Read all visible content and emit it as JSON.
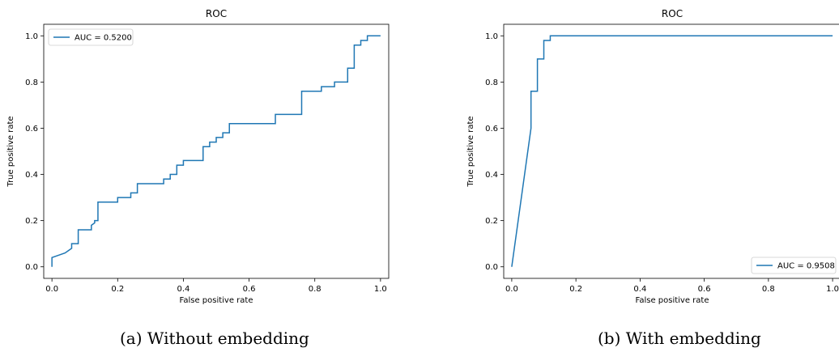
{
  "chart_data": [
    {
      "type": "line",
      "title": "ROC",
      "xlabel": "False positive rate",
      "ylabel": "True positive rate",
      "xlim": [
        -0.025,
        1.025
      ],
      "ylim": [
        -0.05,
        1.05
      ],
      "xticks": [
        0.0,
        0.2,
        0.4,
        0.6,
        0.8,
        1.0
      ],
      "yticks": [
        0.0,
        0.2,
        0.4,
        0.6,
        0.8,
        1.0
      ],
      "tick_labels": [
        "0.0",
        "0.2",
        "0.4",
        "0.6",
        "0.8",
        "1.0"
      ],
      "grid": false,
      "legend_position": "upper-left",
      "series": [
        {
          "name": "AUC = 0.5200",
          "color": "#1f77b4",
          "x": [
            0.0,
            0.0,
            0.02,
            0.04,
            0.05,
            0.06,
            0.06,
            0.08,
            0.08,
            0.12,
            0.12,
            0.13,
            0.13,
            0.14,
            0.14,
            0.2,
            0.2,
            0.24,
            0.24,
            0.26,
            0.26,
            0.34,
            0.34,
            0.36,
            0.36,
            0.38,
            0.38,
            0.4,
            0.4,
            0.46,
            0.46,
            0.48,
            0.48,
            0.5,
            0.5,
            0.52,
            0.52,
            0.54,
            0.54,
            0.68,
            0.68,
            0.76,
            0.76,
            0.82,
            0.82,
            0.86,
            0.86,
            0.9,
            0.9,
            0.92,
            0.92,
            0.94,
            0.94,
            0.96,
            0.96,
            1.0
          ],
          "y": [
            0.0,
            0.04,
            0.05,
            0.06,
            0.07,
            0.08,
            0.1,
            0.1,
            0.16,
            0.16,
            0.18,
            0.19,
            0.2,
            0.2,
            0.28,
            0.28,
            0.3,
            0.3,
            0.32,
            0.32,
            0.36,
            0.36,
            0.38,
            0.38,
            0.4,
            0.4,
            0.44,
            0.44,
            0.46,
            0.46,
            0.52,
            0.52,
            0.54,
            0.54,
            0.56,
            0.56,
            0.58,
            0.58,
            0.62,
            0.62,
            0.66,
            0.66,
            0.76,
            0.76,
            0.78,
            0.78,
            0.8,
            0.8,
            0.86,
            0.86,
            0.96,
            0.96,
            0.98,
            0.98,
            1.0,
            1.0
          ]
        }
      ]
    },
    {
      "type": "line",
      "title": "ROC",
      "xlabel": "False positive rate",
      "ylabel": "True positive rate",
      "xlim": [
        -0.025,
        1.025
      ],
      "ylim": [
        -0.05,
        1.05
      ],
      "xticks": [
        0.0,
        0.2,
        0.4,
        0.6,
        0.8,
        1.0
      ],
      "yticks": [
        0.0,
        0.2,
        0.4,
        0.6,
        0.8,
        1.0
      ],
      "tick_labels": [
        "0.0",
        "0.2",
        "0.4",
        "0.6",
        "0.8",
        "1.0"
      ],
      "grid": false,
      "legend_position": "lower-right",
      "series": [
        {
          "name": "AUC = 0.9508",
          "color": "#1f77b4",
          "x": [
            0.0,
            0.06,
            0.06,
            0.08,
            0.08,
            0.1,
            0.1,
            0.12,
            0.12,
            1.0
          ],
          "y": [
            0.0,
            0.6,
            0.76,
            0.76,
            0.9,
            0.9,
            0.98,
            0.98,
            1.0,
            1.0
          ]
        }
      ]
    }
  ],
  "captions": [
    "(a) Without embedding",
    "(b) With embedding"
  ]
}
